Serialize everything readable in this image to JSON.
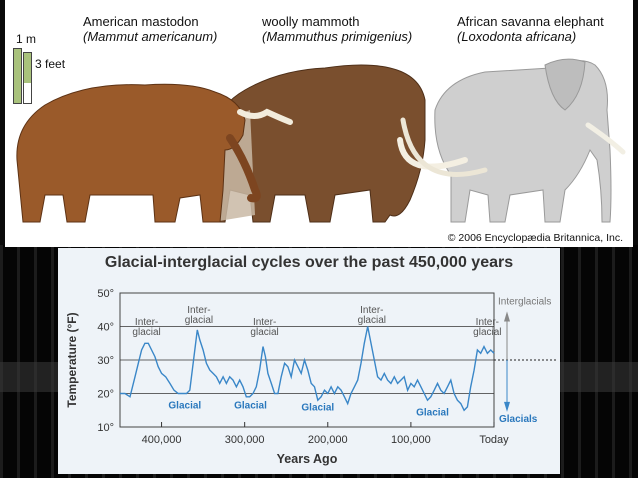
{
  "animals": {
    "mastodon": {
      "common": "American mastodon",
      "scientific": "(Mammut americanum)"
    },
    "mammoth": {
      "common": "woolly mammoth",
      "scientific": "(Mammuthus primigenius)"
    },
    "elephant": {
      "common": "African savanna elephant",
      "scientific": "(Loxodonta africana)"
    },
    "scale_meter": "1 m",
    "scale_feet": "3 feet",
    "copyright": "© 2006 Encyclopædia Britannica, Inc."
  },
  "chart_data": {
    "type": "line",
    "title": "Glacial-interglacial cycles over the past 450,000 years",
    "xlabel": "Years Ago",
    "ylabel": "Temperature (°F)",
    "x_ticks": [
      "400,000",
      "300,000",
      "200,000",
      "100,000",
      "Today"
    ],
    "y_ticks": [
      "50°",
      "40°",
      "30°",
      "20°",
      "10°"
    ],
    "xlim": [
      450000,
      0
    ],
    "ylim": [
      10,
      50
    ],
    "grid": true,
    "reference_line": 30,
    "annotations": {
      "interglacial_label": "Inter-\nglacial",
      "glacial_label": "Glacial",
      "interglacials_side": "Interglacials",
      "glacials_side": "Glacials"
    },
    "series": [
      {
        "values": [
          [
            450000,
            20
          ],
          [
            444000,
            20
          ],
          [
            438000,
            19
          ],
          [
            432000,
            25
          ],
          [
            428000,
            29
          ],
          [
            424000,
            33
          ],
          [
            420000,
            35
          ],
          [
            416000,
            35
          ],
          [
            412000,
            33
          ],
          [
            408000,
            31
          ],
          [
            404000,
            28
          ],
          [
            400000,
            26
          ],
          [
            395000,
            25
          ],
          [
            390000,
            23
          ],
          [
            385000,
            21
          ],
          [
            380000,
            20
          ],
          [
            375000,
            20
          ],
          [
            370000,
            20
          ],
          [
            366000,
            21
          ],
          [
            363000,
            27
          ],
          [
            360000,
            33
          ],
          [
            357000,
            39
          ],
          [
            354000,
            36
          ],
          [
            350000,
            33
          ],
          [
            346000,
            29
          ],
          [
            342000,
            27
          ],
          [
            338000,
            26
          ],
          [
            334000,
            25
          ],
          [
            330000,
            23
          ],
          [
            326000,
            25
          ],
          [
            322000,
            23
          ],
          [
            318000,
            25
          ],
          [
            314000,
            24
          ],
          [
            310000,
            22
          ],
          [
            306000,
            24
          ],
          [
            302000,
            22
          ],
          [
            298000,
            19
          ],
          [
            294000,
            19
          ],
          [
            290000,
            20
          ],
          [
            286000,
            22
          ],
          [
            282000,
            27
          ],
          [
            278000,
            34
          ],
          [
            275000,
            31
          ],
          [
            272000,
            26
          ],
          [
            268000,
            23
          ],
          [
            264000,
            20
          ],
          [
            260000,
            20
          ],
          [
            256000,
            25
          ],
          [
            252000,
            29
          ],
          [
            248000,
            28
          ],
          [
            244000,
            25
          ],
          [
            240000,
            30
          ],
          [
            236000,
            28
          ],
          [
            232000,
            26
          ],
          [
            228000,
            30
          ],
          [
            224000,
            27
          ],
          [
            220000,
            23
          ],
          [
            216000,
            22
          ],
          [
            212000,
            18
          ],
          [
            208000,
            19
          ],
          [
            204000,
            21
          ],
          [
            200000,
            20
          ],
          [
            196000,
            22
          ],
          [
            192000,
            20
          ],
          [
            188000,
            22
          ],
          [
            184000,
            21
          ],
          [
            180000,
            19
          ],
          [
            176000,
            17
          ],
          [
            172000,
            20
          ],
          [
            168000,
            22
          ],
          [
            164000,
            24
          ],
          [
            160000,
            29
          ],
          [
            156000,
            35
          ],
          [
            152000,
            40
          ],
          [
            148000,
            35
          ],
          [
            144000,
            30
          ],
          [
            140000,
            25
          ],
          [
            136000,
            24
          ],
          [
            132000,
            26
          ],
          [
            128000,
            24
          ],
          [
            124000,
            23
          ],
          [
            120000,
            25
          ],
          [
            116000,
            23
          ],
          [
            112000,
            24
          ],
          [
            108000,
            25
          ],
          [
            104000,
            21
          ],
          [
            100000,
            23
          ],
          [
            96000,
            22
          ],
          [
            92000,
            24
          ],
          [
            88000,
            22
          ],
          [
            84000,
            20
          ],
          [
            80000,
            18
          ],
          [
            76000,
            19
          ],
          [
            72000,
            21
          ],
          [
            68000,
            23
          ],
          [
            64000,
            21
          ],
          [
            60000,
            20
          ],
          [
            56000,
            22
          ],
          [
            52000,
            24
          ],
          [
            48000,
            20
          ],
          [
            44000,
            18
          ],
          [
            40000,
            17
          ],
          [
            36000,
            15
          ],
          [
            32000,
            16
          ],
          [
            28000,
            22
          ],
          [
            24000,
            27
          ],
          [
            20000,
            33
          ],
          [
            16000,
            32
          ],
          [
            12000,
            34
          ],
          [
            8000,
            32
          ],
          [
            4000,
            33
          ],
          [
            0,
            32
          ]
        ]
      }
    ]
  }
}
